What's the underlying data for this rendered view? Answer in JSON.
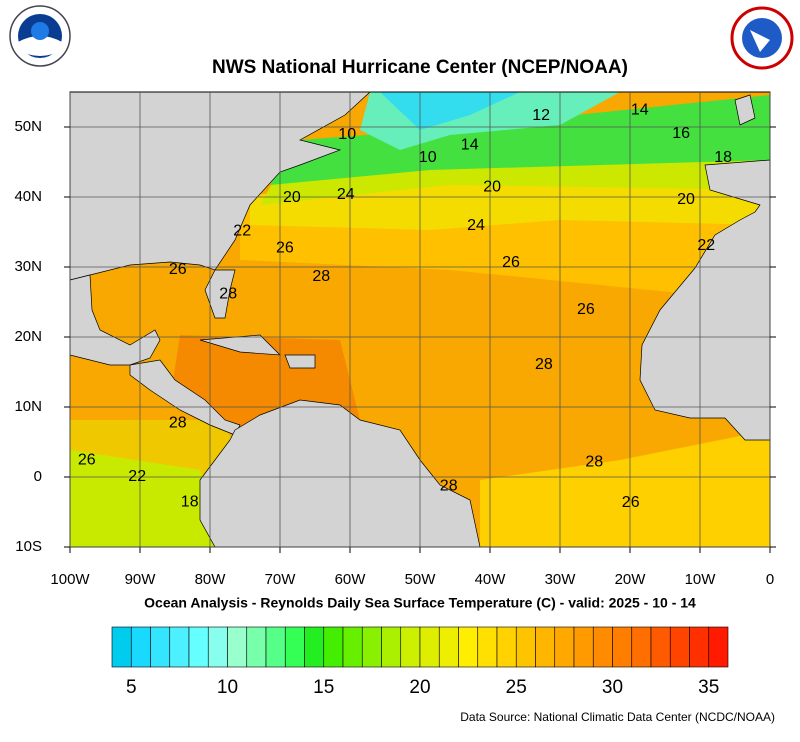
{
  "chart_data": {
    "type": "contour-map",
    "title": "NWS National Hurricane Center (NCEP/NOAA)",
    "caption": "Ocean Analysis - Reynolds Daily Sea Surface Temperature (C) - valid: 2025 - 10 - 14",
    "source": "Data Source: National Climatic Data Center (NCDC/NOAA)",
    "xlim": [
      -100,
      0
    ],
    "ylim": [
      -10,
      55
    ],
    "xticks": [
      {
        "value": -100,
        "label": "100W"
      },
      {
        "value": -90,
        "label": "90W"
      },
      {
        "value": -80,
        "label": "80W"
      },
      {
        "value": -70,
        "label": "70W"
      },
      {
        "value": -60,
        "label": "60W"
      },
      {
        "value": -50,
        "label": "50W"
      },
      {
        "value": -40,
        "label": "40W"
      },
      {
        "value": -30,
        "label": "30W"
      },
      {
        "value": -20,
        "label": "20W"
      },
      {
        "value": -10,
        "label": "10W"
      },
      0
    ],
    "yticks": [
      {
        "value": -10,
        "label": "10S"
      },
      0,
      {
        "value": 10,
        "label": "10N"
      },
      {
        "value": 20,
        "label": "20N"
      },
      {
        "value": 30,
        "label": "30N"
      },
      {
        "value": 40,
        "label": "40N"
      },
      {
        "value": 50,
        "label": "50N"
      }
    ],
    "grid": true,
    "contour_labels": [
      {
        "value": 10,
        "lon": -60.4,
        "lat": 48.9
      },
      {
        "value": 12,
        "lon": -32.7,
        "lat": 51.6
      },
      {
        "value": 14,
        "lon": -18.6,
        "lat": 52.4
      },
      {
        "value": 16,
        "lon": -12.7,
        "lat": 49
      },
      {
        "value": 18,
        "lon": -6.7,
        "lat": 45.6
      },
      {
        "value": 10,
        "lon": -48.9,
        "lat": 45.6
      },
      {
        "value": 14,
        "lon": -42.9,
        "lat": 47.4
      },
      {
        "value": 20,
        "lon": -39.7,
        "lat": 41.4
      },
      {
        "value": 20,
        "lon": -68.3,
        "lat": 39.9
      },
      {
        "value": 24,
        "lon": -60.6,
        "lat": 40.3
      },
      {
        "value": 20,
        "lon": -12,
        "lat": 39.6
      },
      {
        "value": 22,
        "lon": -75.4,
        "lat": 35.1
      },
      {
        "value": 24,
        "lon": -42,
        "lat": 35.9
      },
      {
        "value": 26,
        "lon": -69.3,
        "lat": 32.7
      },
      {
        "value": 22,
        "lon": -9.1,
        "lat": 33
      },
      {
        "value": 26,
        "lon": -37,
        "lat": 30.6
      },
      {
        "value": 26,
        "lon": -84.6,
        "lat": 29.6
      },
      {
        "value": 28,
        "lon": -64.1,
        "lat": 28.6
      },
      {
        "value": 28,
        "lon": -77.4,
        "lat": 26.1
      },
      {
        "value": 26,
        "lon": -26.3,
        "lat": 23.9
      },
      {
        "value": 28,
        "lon": -32.3,
        "lat": 16
      },
      {
        "value": 28,
        "lon": -84.6,
        "lat": 7.7
      },
      {
        "value": 26,
        "lon": -97.6,
        "lat": 2.4
      },
      {
        "value": 22,
        "lon": -90.4,
        "lat": 0
      },
      {
        "value": 28,
        "lon": -25.1,
        "lat": 2.1
      },
      {
        "value": 28,
        "lon": -45.9,
        "lat": -1.3
      },
      {
        "value": 18,
        "lon": -82.9,
        "lat": -3.6
      },
      {
        "value": 26,
        "lon": -19.9,
        "lat": -3.7
      }
    ],
    "colorbar": {
      "lim": [
        4,
        36
      ],
      "ticks": [
        5,
        10,
        15,
        20,
        25,
        30,
        35
      ],
      "colors": [
        "#00ccee",
        "#1ad9ff",
        "#33e5ff",
        "#4df0ff",
        "#66ffff",
        "#88ffee",
        "#99ffcc",
        "#77ffaa",
        "#55ff88",
        "#33ff55",
        "#22ee22",
        "#44ee00",
        "#66f000",
        "#88f000",
        "#aaf000",
        "#ccf000",
        "#ddee00",
        "#eeee00",
        "#ffee00",
        "#ffe000",
        "#ffd200",
        "#ffc400",
        "#ffb600",
        "#ffa800",
        "#ff9a00",
        "#ff8c00",
        "#ff7e00",
        "#ff6e00",
        "#ff5a00",
        "#ff4400",
        "#ff3000",
        "#ff1a00"
      ]
    }
  }
}
